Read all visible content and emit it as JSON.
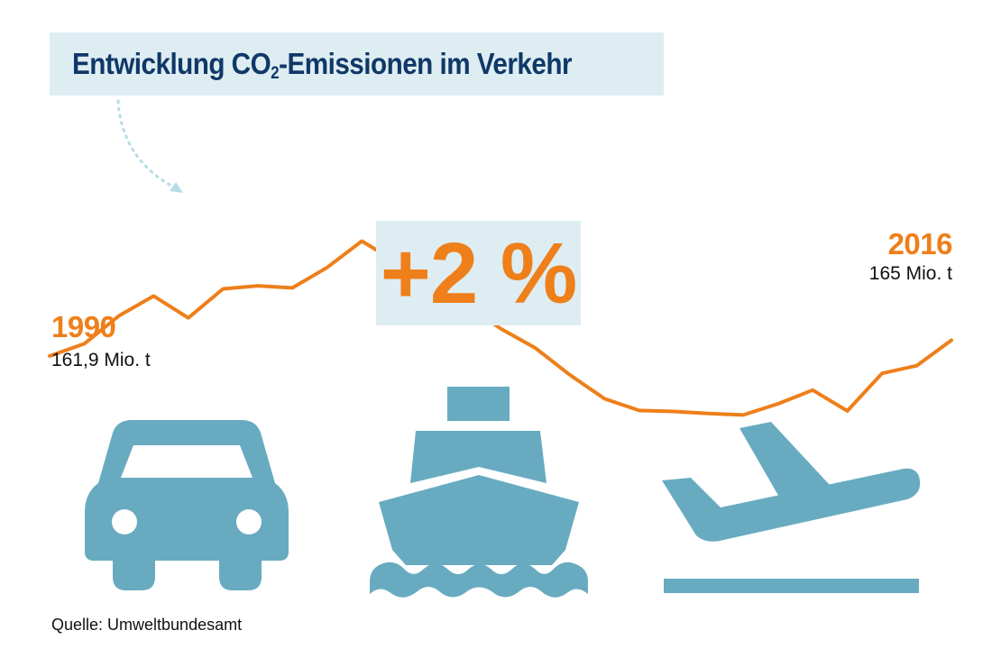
{
  "title": {
    "text_before": "Entwicklung CO",
    "subscript": "2",
    "text_after": "-Emissionen im Verkehr"
  },
  "highlight": {
    "change": "+2 %"
  },
  "start_label": {
    "year": "1990",
    "value": "161,9 Mio. t"
  },
  "end_label": {
    "year": "2016",
    "value": "165 Mio. t"
  },
  "source": "Quelle: Umweltbundesamt",
  "icons": [
    "car-icon",
    "ship-icon",
    "airplane-icon"
  ],
  "colors": {
    "line": "#ee7f1a",
    "title": "#0f3868",
    "box": "#deedf2",
    "icon": "#68abc0"
  },
  "chart_data": {
    "type": "line",
    "title": "Entwicklung CO2-Emissionen im Verkehr",
    "xlabel": "",
    "ylabel": "",
    "grid": false,
    "x": [
      1990,
      1991,
      1992,
      1993,
      1994,
      1995,
      1996,
      1997,
      1998,
      1999,
      2000,
      2001,
      2002,
      2003,
      2004,
      2005,
      2006,
      2007,
      2008,
      2009,
      2010,
      2011,
      2012,
      2013,
      2014,
      2015,
      2016
    ],
    "values": [
      161.9,
      164.3,
      169.8,
      173.7,
      169.4,
      175.1,
      175.7,
      175.3,
      179.3,
      184.5,
      180.4,
      176.4,
      172.1,
      167.3,
      163.5,
      158.2,
      153.5,
      151.2,
      151.0,
      150.6,
      150.3,
      152.5,
      155.2,
      151.1,
      158.5,
      160.0,
      165.0
    ],
    "ylim": [
      130,
      200
    ]
  }
}
